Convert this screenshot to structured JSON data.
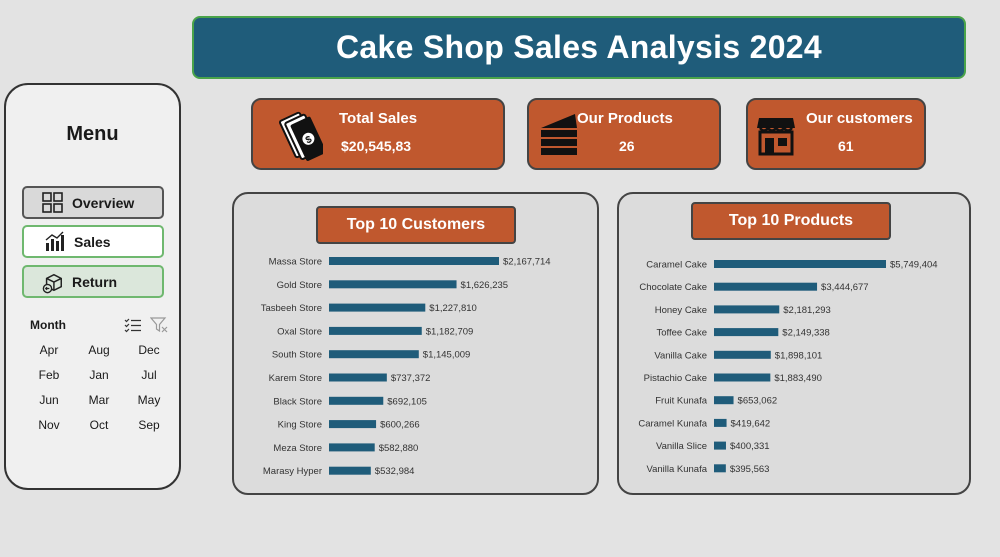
{
  "title": "Cake Shop Sales Analysis 2024",
  "menu": {
    "title": "Menu",
    "buttons": [
      {
        "label": "Overview",
        "icon": "grid-icon"
      },
      {
        "label": "Sales",
        "icon": "bar-chart-icon"
      },
      {
        "label": "Return",
        "icon": "return-box-icon"
      }
    ],
    "slicer": {
      "label": "Month",
      "months": [
        "Apr",
        "Aug",
        "Dec",
        "Feb",
        "Jan",
        "Jul",
        "Jun",
        "Mar",
        "May",
        "Nov",
        "Oct",
        "Sep"
      ]
    }
  },
  "kpis": {
    "sales": {
      "title": "Total Sales",
      "value": "$20,545,83",
      "icon": "money-icon"
    },
    "products": {
      "title": "Our Products",
      "value": "26",
      "icon": "cake-slice-icon"
    },
    "customers": {
      "title": "Our customers",
      "value": "61",
      "icon": "store-icon"
    }
  },
  "colors": {
    "title_bg": "#1f5c7a",
    "card_bg": "#c0582e",
    "bar": "#1f5c7a",
    "panel_bg": "#dcdcdc"
  },
  "chart_data": [
    {
      "type": "bar",
      "orientation": "horizontal",
      "title": "Top 10 Customers",
      "categories": [
        "Massa Store",
        "Gold Store",
        "Tasbeeh Store",
        "Oxal Store",
        "South Store",
        "Karem Store",
        "Black Store",
        "King Store",
        "Meza Store",
        "Marasy Hyper"
      ],
      "values": [
        2167714,
        1626235,
        1227810,
        1182709,
        1145009,
        737372,
        692105,
        600266,
        582880,
        532984
      ],
      "labels": [
        "$2,167,714",
        "$1,626,235",
        "$1,227,810",
        "$1,182,709",
        "$1,145,009",
        "$737,372",
        "$692,105",
        "$600,266",
        "$582,880",
        "$532,984"
      ]
    },
    {
      "type": "bar",
      "orientation": "horizontal",
      "title": "Top 10  Products",
      "categories": [
        "Caramel Cake",
        "Chocolate Cake",
        "Honey Cake",
        "Toffee Cake",
        "Vanilla Cake",
        "Pistachio Cake",
        "Fruit Kunafa",
        "Caramel Kunafa",
        "Vanilla Slice",
        "Vanilla Kunafa"
      ],
      "values": [
        5749404,
        3444677,
        2181293,
        2149338,
        1898101,
        1883490,
        653062,
        419642,
        400331,
        395563
      ],
      "labels": [
        "$5,749,404",
        "$3,444,677",
        "$2,181,293",
        "$2,149,338",
        "$1,898,101",
        "$1,883,490",
        "$653,062",
        "$419,642",
        "$400,331",
        "$395,563"
      ]
    }
  ]
}
